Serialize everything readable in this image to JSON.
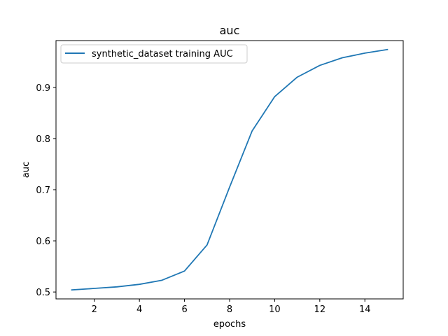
{
  "chart_data": {
    "type": "line",
    "title": "auc",
    "xlabel": "epochs",
    "ylabel": "auc",
    "x": [
      1,
      2,
      3,
      4,
      5,
      6,
      7,
      8,
      9,
      10,
      11,
      12,
      13,
      14,
      15
    ],
    "series": [
      {
        "name": "synthetic_dataset training AUC",
        "color": "#1f77b4",
        "values": [
          0.504,
          0.507,
          0.51,
          0.515,
          0.523,
          0.541,
          0.592,
          0.705,
          0.815,
          0.882,
          0.92,
          0.943,
          0.958,
          0.967,
          0.974
        ]
      }
    ],
    "xlim": [
      0.3,
      15.7
    ],
    "ylim": [
      0.4865,
      0.9915
    ],
    "x_ticks": [
      2,
      4,
      6,
      8,
      10,
      12,
      14
    ],
    "x_tick_labels": [
      "2",
      "4",
      "6",
      "8",
      "10",
      "12",
      "14"
    ],
    "y_ticks": [
      0.5,
      0.6,
      0.7,
      0.8,
      0.9
    ],
    "y_tick_labels": [
      "0.5",
      "0.6",
      "0.7",
      "0.8",
      "0.9"
    ],
    "grid": false,
    "legend_position": "top-left"
  }
}
